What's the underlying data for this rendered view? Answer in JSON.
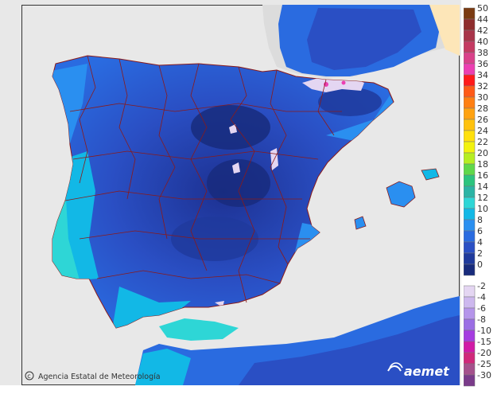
{
  "map": {
    "sea_color": "#e8e8e8",
    "land_outside_color": "#e3e3e3",
    "border_color": "#8a1a1a",
    "credit": {
      "icon": "copyright-icon",
      "text": "Agencia Estatal de Meteorología"
    },
    "logo_text": "aemet"
  },
  "legend": {
    "positive": [
      {
        "label": "50",
        "color": "#7a3b12"
      },
      {
        "label": "44",
        "color": "#8e2d2d"
      },
      {
        "label": "42",
        "color": "#a8344a"
      },
      {
        "label": "40",
        "color": "#c43a62"
      },
      {
        "label": "38",
        "color": "#d9418a"
      },
      {
        "label": "36",
        "color": "#ec3fb2"
      },
      {
        "label": "34",
        "color": "#ff1a1a"
      },
      {
        "label": "32",
        "color": "#ff5a17"
      },
      {
        "label": "30",
        "color": "#ff7f12"
      },
      {
        "label": "28",
        "color": "#ffa210"
      },
      {
        "label": "26",
        "color": "#ffc20e"
      },
      {
        "label": "24",
        "color": "#ffe00c"
      },
      {
        "label": "22",
        "color": "#f2f20e"
      },
      {
        "label": "20",
        "color": "#b6ee22"
      },
      {
        "label": "18",
        "color": "#5fd84a"
      },
      {
        "label": "16",
        "color": "#2cc47e"
      },
      {
        "label": "14",
        "color": "#2bb4a5"
      },
      {
        "label": "12",
        "color": "#2ed6d6"
      },
      {
        "label": "10",
        "color": "#12b8e6"
      },
      {
        "label": "8",
        "color": "#2a8ff0"
      },
      {
        "label": "6",
        "color": "#2a6be0"
      },
      {
        "label": "4",
        "color": "#2a4fc4"
      },
      {
        "label": "2",
        "color": "#1f3a9c"
      },
      {
        "label": "0",
        "color": "#182b7c"
      }
    ],
    "negative": [
      {
        "label": "-2",
        "color": "#e4d6f2"
      },
      {
        "label": "-4",
        "color": "#cdb8ee"
      },
      {
        "label": "-6",
        "color": "#b595ea"
      },
      {
        "label": "-8",
        "color": "#9b6ee4"
      },
      {
        "label": "-10",
        "color": "#a53ce0"
      },
      {
        "label": "-15",
        "color": "#d11aa6"
      },
      {
        "label": "-20",
        "color": "#d0287a"
      },
      {
        "label": "-25",
        "color": "#a5518c"
      },
      {
        "label": "-30",
        "color": "#7a3b8a"
      }
    ]
  }
}
